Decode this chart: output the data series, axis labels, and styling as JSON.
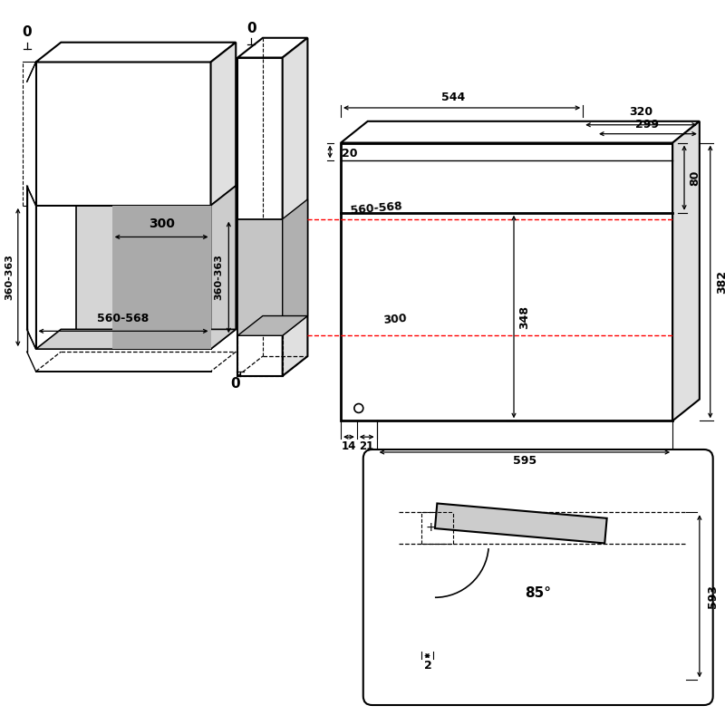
{
  "bg_color": "#ffffff",
  "lc": "#000000",
  "gray": "#aaaaaa",
  "lgray": "#cccccc",
  "red": "#ff0000",
  "ann": {
    "z0a": "0",
    "z0b": "0",
    "z0c": "0",
    "r360L": "360-363",
    "r360C": "360-363",
    "n300i": "300",
    "n568i": "560-568",
    "n568c": "560-568",
    "n300c": "300",
    "n320": "320",
    "n299": "299",
    "n544": "544",
    "n20": "20",
    "n80": "80",
    "n382": "382",
    "n348": "348",
    "n14": "14",
    "n21": "21",
    "n595": "595",
    "n85": "85°",
    "n593": "593",
    "n2": "2"
  }
}
